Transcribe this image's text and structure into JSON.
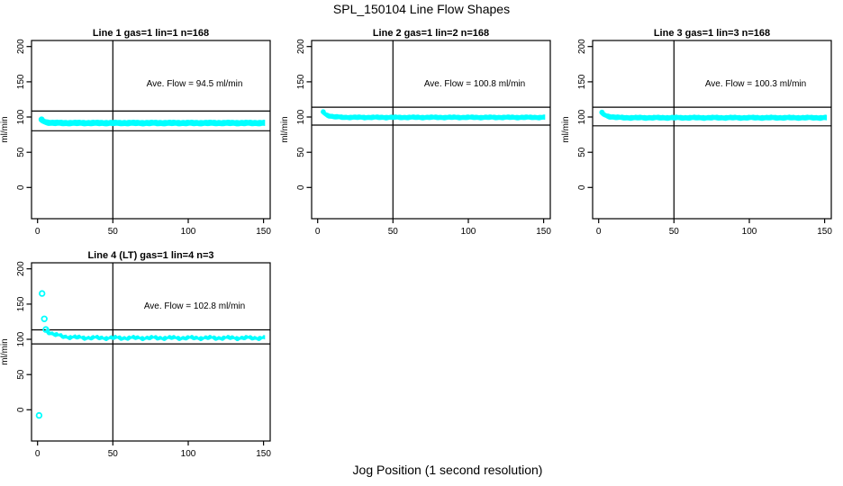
{
  "figure": {
    "main_title": "SPL_150104  Line Flow Shapes",
    "x_axis_label": "Jog Position (1 second resolution)",
    "background_color": "#ffffff",
    "point_color": "#00FFFF",
    "axis_color": "#000000"
  },
  "chart_data": [
    {
      "type": "scatter",
      "title": "Line 1 gas=1 lin=1 n=168",
      "ave_flow_label": "Ave. Flow =  94.5  ml/min",
      "ave_flow": 94.5,
      "n": 168,
      "ylabel": "ml/min",
      "x_ticks": [
        0,
        50,
        100,
        150
      ],
      "y_ticks": [
        0,
        50,
        100,
        150,
        200
      ],
      "xlim": [
        -4,
        154.4
      ],
      "ylim": [
        -44.3,
        208.6
      ],
      "vline_x": 50,
      "hlines": [
        108.5,
        80.5
      ],
      "band": {
        "x_start": 2,
        "x_end": 151,
        "y_start": 96.5,
        "y_settle": 91.5,
        "settle_x": 10,
        "half_width": 4.3,
        "wobble": 0.3
      },
      "outliers": []
    },
    {
      "type": "scatter",
      "title": "Line 2 gas=1 lin=2 n=168",
      "ave_flow_label": "Ave. Flow =  100.8  ml/min",
      "ave_flow": 100.8,
      "n": 168,
      "ylabel": "ml/min",
      "x_ticks": [
        0,
        50,
        100,
        150
      ],
      "y_ticks": [
        0,
        50,
        100,
        150,
        200
      ],
      "xlim": [
        -4,
        154.4
      ],
      "ylim": [
        -44.3,
        208.6
      ],
      "vline_x": 50,
      "hlines": [
        114,
        88.5
      ],
      "band": {
        "x_start": 3,
        "x_end": 151.5,
        "y_start": 107.5,
        "y_settle": 99.5,
        "settle_x": 14,
        "half_width": 3.6,
        "wobble": 0.35
      },
      "outliers": []
    },
    {
      "type": "scatter",
      "title": "Line 3 gas=1 lin=3 n=168",
      "ave_flow_label": "Ave. Flow =  100.3  ml/min",
      "ave_flow": 100.3,
      "n": 168,
      "ylabel": "ml/min",
      "x_ticks": [
        0,
        50,
        100,
        150
      ],
      "y_ticks": [
        0,
        50,
        100,
        150,
        200
      ],
      "xlim": [
        -4,
        154.4
      ],
      "ylim": [
        -44.3,
        208.6
      ],
      "vline_x": 50,
      "hlines": [
        114,
        87.5
      ],
      "band": {
        "x_start": 1.5,
        "x_end": 151.5,
        "y_start": 106.5,
        "y_settle": 99,
        "settle_x": 13,
        "half_width": 3.8,
        "wobble": 0.35
      },
      "outliers": []
    },
    {
      "type": "scatter",
      "title": "Line 4 (LT) gas=1 lin=4 n=3",
      "ave_flow_label": "Ave. Flow =  102.8  ml/min",
      "ave_flow": 102.8,
      "n": 3,
      "ylabel": "ml/min",
      "x_ticks": [
        0,
        50,
        100,
        150
      ],
      "y_ticks": [
        0,
        50,
        100,
        150,
        200
      ],
      "xlim": [
        -4,
        154.4
      ],
      "ylim": [
        -44.3,
        208.6
      ],
      "vline_x": 50,
      "hlines": [
        113.5,
        93.5
      ],
      "band": {
        "x_start": 6,
        "x_end": 151.5,
        "y_start": 112,
        "y_settle": 102,
        "settle_x": 28,
        "half_width": 2.8,
        "wobble": 1.1
      },
      "outliers": [
        [
          3,
          165
        ],
        [
          4.5,
          129
        ],
        [
          5.5,
          114
        ],
        [
          1,
          -8
        ]
      ]
    }
  ]
}
